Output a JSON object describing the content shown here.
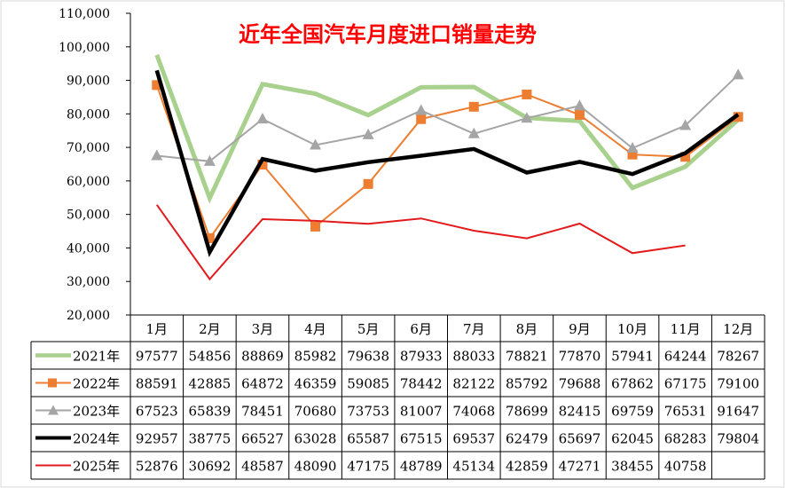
{
  "chart_data": {
    "type": "line",
    "title": "近年全国汽车月度进口销量走势",
    "categories": [
      "1月",
      "2月",
      "3月",
      "4月",
      "5月",
      "6月",
      "7月",
      "8月",
      "9月",
      "10月",
      "11月",
      "12月"
    ],
    "y_ticks": [
      "20,000",
      "30,000",
      "40,000",
      "50,000",
      "60,000",
      "70,000",
      "80,000",
      "90,000",
      "100,000",
      "110,000"
    ],
    "ylim": [
      20000,
      110000
    ],
    "y_step": 10000,
    "grid": false,
    "legend": "data-table-left",
    "series": [
      {
        "name": "2021年",
        "color": "#a9d18e",
        "width": 5,
        "marker": "none",
        "values": [
          97577,
          54856,
          88869,
          85982,
          79638,
          87933,
          88033,
          78821,
          77870,
          57941,
          64244,
          78267
        ]
      },
      {
        "name": "2022年",
        "color": "#ed7d31",
        "width": 2,
        "marker": "square",
        "values": [
          88591,
          42885,
          64872,
          46359,
          59085,
          78442,
          82122,
          85792,
          79688,
          67862,
          67175,
          79100
        ]
      },
      {
        "name": "2023年",
        "color": "#a5a5a5",
        "width": 2,
        "marker": "triangle",
        "values": [
          67523,
          65839,
          78451,
          70680,
          73753,
          81007,
          74068,
          78699,
          82415,
          69759,
          76531,
          91647
        ]
      },
      {
        "name": "2024年",
        "color": "#000000",
        "width": 4.5,
        "marker": "none",
        "values": [
          92957,
          38775,
          66527,
          63028,
          65587,
          67515,
          69537,
          62479,
          65697,
          62045,
          68283,
          79804
        ]
      },
      {
        "name": "2025年",
        "color": "#e31a1c",
        "width": 2,
        "marker": "none",
        "values": [
          52876,
          30692,
          48587,
          48090,
          47175,
          48789,
          45134,
          42859,
          47271,
          38455,
          40758,
          null
        ]
      }
    ]
  }
}
